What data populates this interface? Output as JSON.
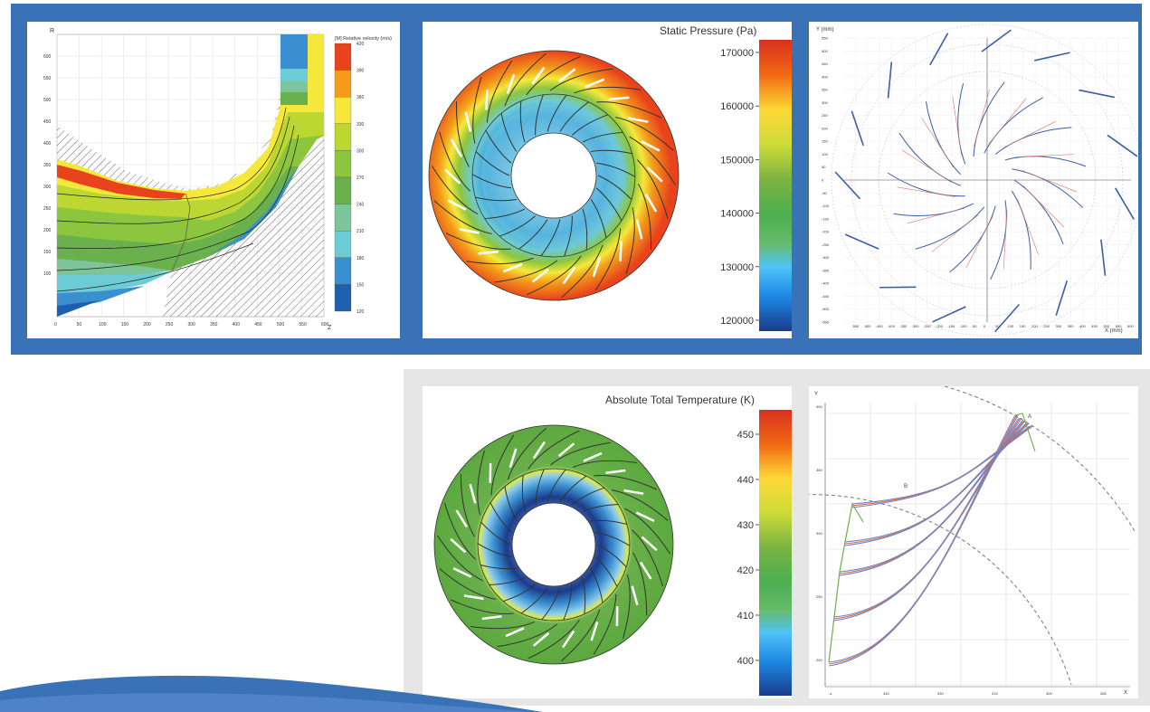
{
  "colors": {
    "band_blue": "#3a72b8",
    "light_gray": "#e6e6e6"
  },
  "chart_data": [
    {
      "type": "heatmap",
      "title": "[M] Relative velocity  (m/s)",
      "xlabel": "Z",
      "ylabel": "R",
      "xlim": [
        0,
        600
      ],
      "ylim": [
        0,
        650
      ],
      "xticks": [
        "0",
        "50",
        "100",
        "150",
        "200",
        "250",
        "300",
        "350",
        "400",
        "450",
        "500",
        "550",
        "600"
      ],
      "yticks": [
        "100",
        "150",
        "200",
        "250",
        "300",
        "350",
        "400",
        "450",
        "500",
        "550",
        "600"
      ],
      "legend_levels": [
        "420",
        "390",
        "360",
        "330",
        "300",
        "270",
        "240",
        "210",
        "180",
        "150",
        "120"
      ],
      "legend_colors": [
        "#e8431c",
        "#f39c1a",
        "#f5e83a",
        "#bcd632",
        "#8cc63f",
        "#6ab04c",
        "#7cc49a",
        "#6dcbd6",
        "#3a8fd0",
        "#1f5fb0"
      ],
      "grid": true
    },
    {
      "type": "heatmap",
      "title": "Static Pressure (Pa)",
      "colorbar_ticks": [
        "170000",
        "160000",
        "150000",
        "140000",
        "130000",
        "120000"
      ],
      "blade_count": 22,
      "vane_count": 22
    },
    {
      "type": "scatter",
      "xlabel": "X (mm)",
      "ylabel": "Y (mm)",
      "xlim": [
        -600,
        600
      ],
      "ylim": [
        -550,
        550
      ],
      "xticks": [
        "-550",
        "-500",
        "-450",
        "-400",
        "-350",
        "-300",
        "-250",
        "-200",
        "-150",
        "-100",
        "-50",
        "0",
        "50",
        "100",
        "150",
        "200",
        "250",
        "300",
        "350",
        "400",
        "450",
        "500",
        "550",
        "600"
      ],
      "yticks": [
        "550",
        "500",
        "450",
        "400",
        "350",
        "300",
        "250",
        "200",
        "150",
        "100",
        "50",
        "0",
        "-50",
        "-100",
        "-150",
        "-200",
        "-250",
        "-300",
        "-350",
        "-400",
        "-450",
        "-500",
        "-550"
      ],
      "grid": true
    },
    {
      "type": "heatmap",
      "title": "Absolute Total Temperature (K)",
      "colorbar_ticks": [
        "450",
        "440",
        "430",
        "420",
        "410",
        "400"
      ]
    },
    {
      "type": "line",
      "xlabel": "X",
      "ylabel": "Y",
      "xticks": [
        "-s",
        "345",
        "330",
        "315",
        "300",
        "285"
      ],
      "yticks": [
        "400",
        "350",
        "300",
        "250",
        "200"
      ],
      "annotations": [
        "A",
        "B"
      ],
      "series_colors": [
        "#6a86c9",
        "#e06a4a",
        "#6bb04a"
      ]
    }
  ]
}
